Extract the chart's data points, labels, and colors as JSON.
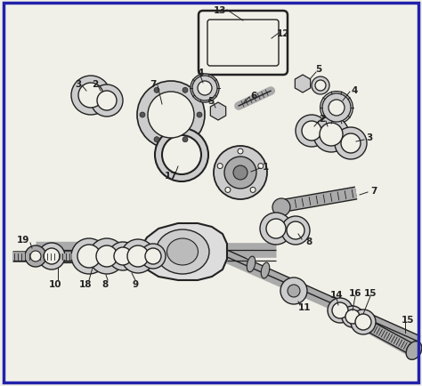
{
  "bg_color": "#f0f0e8",
  "border_color": "#2222aa",
  "lc": "#222222",
  "lc2": "#555555",
  "figsize": [
    4.74,
    4.35
  ],
  "dpi": 100
}
